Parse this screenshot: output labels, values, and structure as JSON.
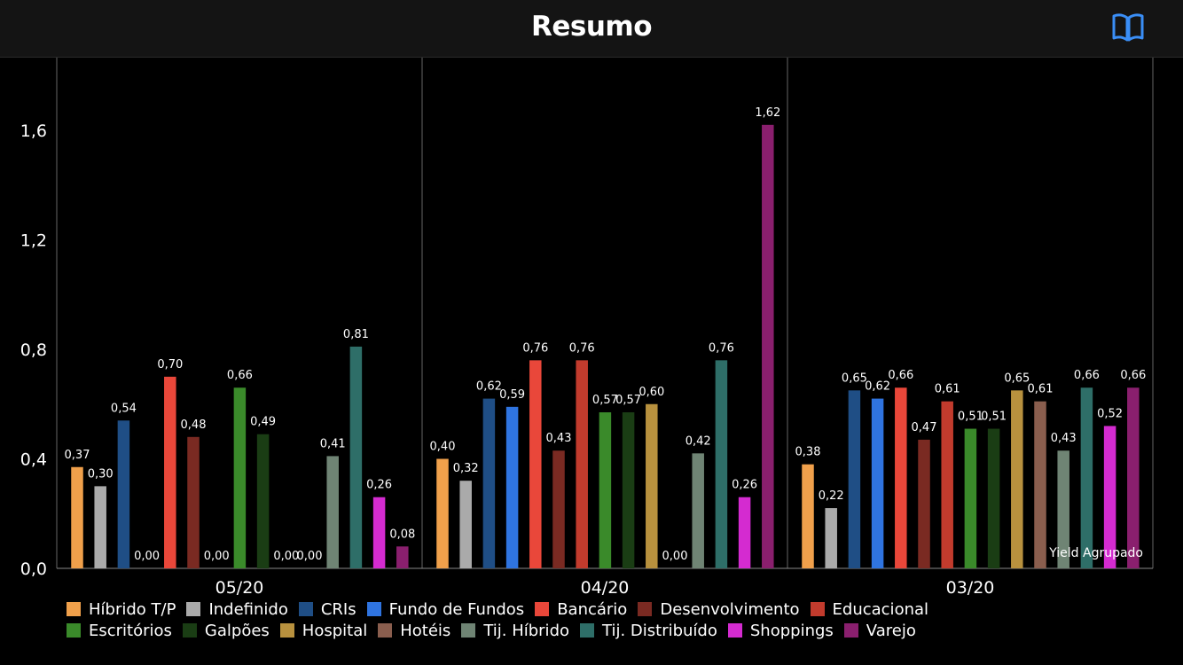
{
  "header": {
    "title": "Resumo",
    "book_icon": "book-open-icon",
    "accent": "#3a8ef6"
  },
  "chart_data": {
    "type": "bar",
    "title": "",
    "xlabel": "",
    "ylabel": "",
    "ylim": [
      0,
      1.8
    ],
    "yticks": [
      "0,0",
      "0,4",
      "0,8",
      "1,2",
      "1,6"
    ],
    "grid": false,
    "legend_position": "bottom",
    "annotation": "Yield Agrupado",
    "categories": [
      "05/20",
      "04/20",
      "03/20"
    ],
    "series": [
      {
        "name": "Híbrido T/P",
        "color": "#f0a04b",
        "values": [
          0.37,
          0.4,
          0.38
        ],
        "labels": [
          "0,37",
          "0,40",
          "0,38"
        ]
      },
      {
        "name": "Indefinido",
        "color": "#aaaaaa",
        "values": [
          0.3,
          0.32,
          0.22
        ],
        "labels": [
          "0,30",
          "0,32",
          "0,22"
        ]
      },
      {
        "name": "CRIs",
        "color": "#1f4e85",
        "values": [
          0.54,
          0.62,
          0.65
        ],
        "labels": [
          "0,54",
          "0,62",
          "0,65"
        ]
      },
      {
        "name": "Fundo de Fundos",
        "color": "#2f74e0",
        "values": [
          0.0,
          0.59,
          0.62
        ],
        "labels": [
          "0,00",
          "0,59",
          "0,62"
        ]
      },
      {
        "name": "Bancário",
        "color": "#e9473a",
        "values": [
          0.7,
          0.76,
          0.66
        ],
        "labels": [
          "0,70",
          "0,76",
          "0,66"
        ]
      },
      {
        "name": "Desenvolvimento",
        "color": "#7a2a22",
        "values": [
          0.48,
          0.43,
          0.47
        ],
        "labels": [
          "0,48",
          "0,43",
          "0,47"
        ]
      },
      {
        "name": "Educacional",
        "color": "#c23b2d",
        "values": [
          0.0,
          0.76,
          0.61
        ],
        "labels": [
          "0,00",
          "0,76",
          "0,61"
        ]
      },
      {
        "name": "Escritórios",
        "color": "#3a8a2a",
        "values": [
          0.66,
          0.57,
          0.51
        ],
        "labels": [
          "0,66",
          "0,57",
          "0,51"
        ]
      },
      {
        "name": "Galpões",
        "color": "#1a3d14",
        "values": [
          0.49,
          0.57,
          0.51
        ],
        "labels": [
          "0,49",
          "0,57",
          "0,51"
        ]
      },
      {
        "name": "Hospital",
        "color": "#b8913e",
        "values": [
          0.0,
          0.6,
          0.65
        ],
        "labels": [
          "0,00",
          "0,60",
          "0,65"
        ]
      },
      {
        "name": "Hotéis",
        "color": "#8a5e4e",
        "values": [
          0.0,
          0.0,
          0.61
        ],
        "labels": [
          "0,00",
          "0,00",
          "0,61"
        ]
      },
      {
        "name": "Tij. Híbrido",
        "color": "#6f8474",
        "values": [
          0.41,
          0.42,
          0.43
        ],
        "labels": [
          "0,41",
          "0,42",
          "0,43"
        ]
      },
      {
        "name": "Tij. Distribuído",
        "color": "#2e6e68",
        "values": [
          0.81,
          0.76,
          0.66
        ],
        "labels": [
          "0,81",
          "0,76",
          "0,66"
        ]
      },
      {
        "name": "Shoppings",
        "color": "#d42bd0",
        "values": [
          0.26,
          0.26,
          0.52
        ],
        "labels": [
          "0,26",
          "0,26",
          "0,52"
        ]
      },
      {
        "name": "Varejo",
        "color": "#8a1f6e",
        "values": [
          0.08,
          1.62,
          0.66
        ],
        "labels": [
          "0,08",
          "1,62",
          "0,66"
        ]
      }
    ]
  }
}
